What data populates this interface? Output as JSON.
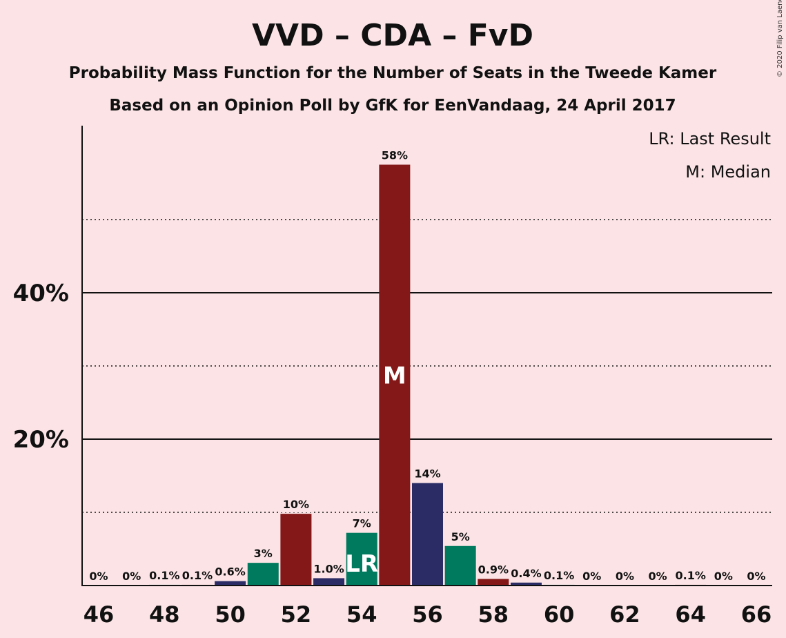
{
  "title": "VVD – CDA – FvD",
  "subtitle_1": "Probability Mass Function for the Number of Seats in the Tweede Kamer",
  "subtitle_2": "Based on an Opinion Poll by GfK for EenVandaag, 24 April 2017",
  "copyright": "© 2020 Filip van Laenen",
  "legend": {
    "last_result": "LR: Last Result",
    "median": "M: Median"
  },
  "colors": {
    "background": "#FCE4E6",
    "vvd_navy": "#2B2C66",
    "cda_green": "#007A5E",
    "fvd_red": "#841818"
  },
  "chart_data": {
    "type": "bar",
    "x": [
      46,
      47,
      48,
      49,
      50,
      51,
      52,
      53,
      54,
      55,
      56,
      57,
      58,
      59,
      60,
      61,
      62,
      63,
      64,
      65,
      66
    ],
    "values": [
      0,
      0,
      0.1,
      0.1,
      0.6,
      3.1,
      9.8,
      1.0,
      7.2,
      57.5,
      14.0,
      5.4,
      0.9,
      0.4,
      0.1,
      0,
      0,
      0,
      0.1,
      0,
      0
    ],
    "labels": [
      "0%",
      "0%",
      "0.1%",
      "0.1%",
      "0.6%",
      "3%",
      "10%",
      "1.0%",
      "7%",
      "58%",
      "14%",
      "5%",
      "0.9%",
      "0.4%",
      "0.1%",
      "0%",
      "0%",
      "0%",
      "0.1%",
      "0%",
      "0%"
    ],
    "bar_colors": [
      "#841818",
      "#2B2C66",
      "#007A5E",
      "#841818",
      "#2B2C66",
      "#007A5E",
      "#841818",
      "#2B2C66",
      "#007A5E",
      "#841818",
      "#2B2C66",
      "#007A5E",
      "#841818",
      "#2B2C66",
      "#007A5E",
      "#841818",
      "#2B2C66",
      "#007A5E",
      "#841818",
      "#2B2C66",
      "#007A5E"
    ],
    "xticks": [
      46,
      48,
      50,
      52,
      54,
      56,
      58,
      60,
      62,
      64,
      66
    ],
    "yticks_labeled": [
      {
        "value": 20,
        "label": "20%"
      },
      {
        "value": 40,
        "label": "40%"
      }
    ],
    "ylim": [
      0,
      62
    ],
    "grid_solid": [
      20,
      40
    ],
    "grid_dotted": [
      10,
      30,
      50
    ],
    "last_result": {
      "seats": 54,
      "mark": "LR"
    },
    "median": {
      "seats": 55,
      "mark": "M"
    }
  }
}
